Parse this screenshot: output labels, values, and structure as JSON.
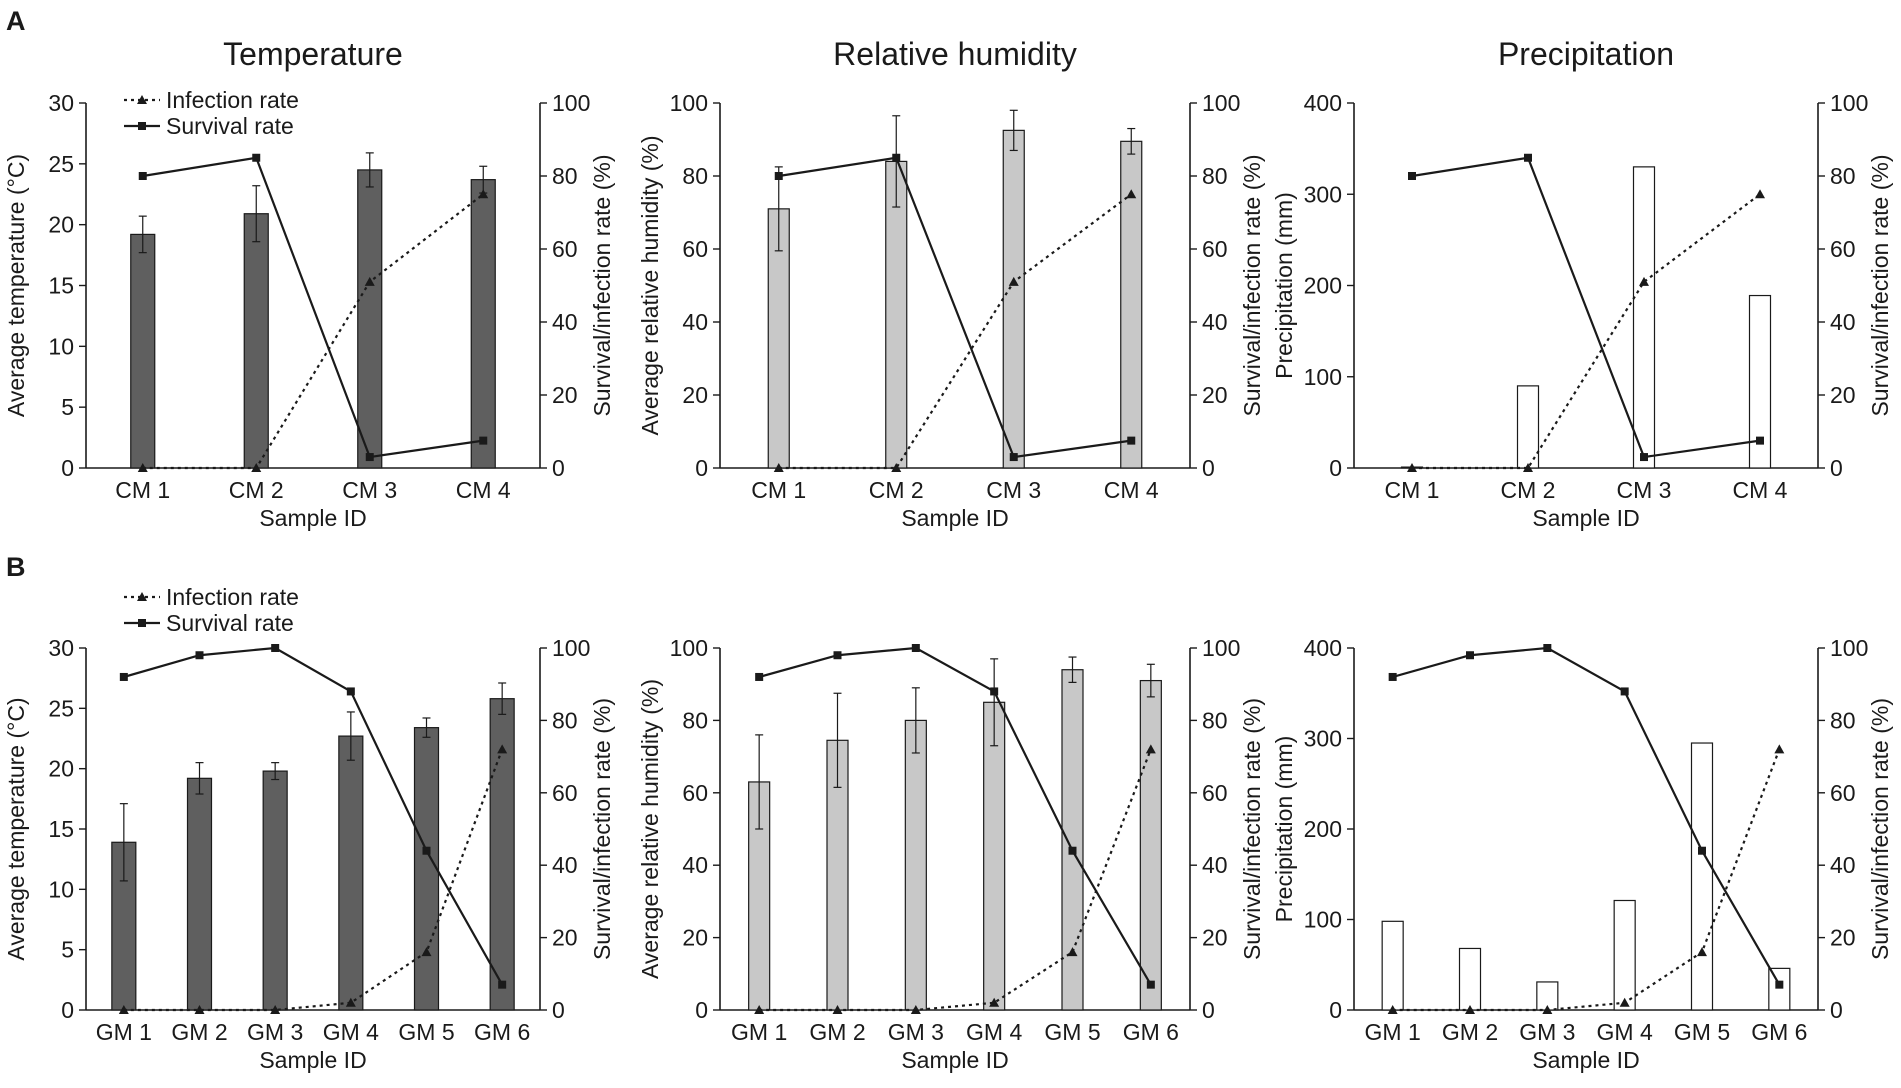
{
  "panel_labels": [
    "A",
    "B"
  ],
  "legend": {
    "infection": "Infection rate",
    "survival": "Survival rate"
  },
  "colors": {
    "temperature": "#5f5f5f",
    "humidity": "#c8c8c8",
    "precipitation": "#ffffff",
    "ink": "#1a1a1a"
  },
  "chart_data": [
    {
      "type": "bar",
      "panel": "A",
      "title": "Temperature",
      "categories": [
        "CM 1",
        "CM 2",
        "CM 3",
        "CM 4"
      ],
      "values": [
        19.2,
        20.9,
        24.5,
        23.7
      ],
      "errors": [
        1.5,
        2.3,
        1.4,
        1.1
      ],
      "xlabel": "Sample ID",
      "ylabel": "Average temperature (°C)",
      "ylim": [
        0,
        30
      ],
      "yticks": [
        0,
        5,
        10,
        15,
        20,
        25,
        30
      ],
      "y2label": "Survival/infection rate (%)",
      "y2lim": [
        0,
        100
      ],
      "y2ticks": [
        0,
        20,
        40,
        60,
        80,
        100
      ],
      "series": [
        {
          "name": "Infection rate",
          "values": [
            0,
            0,
            51,
            75
          ]
        },
        {
          "name": "Survival rate",
          "values": [
            80,
            85,
            3,
            7.5
          ]
        }
      ]
    },
    {
      "type": "bar",
      "panel": "A",
      "title": "Relative humidity",
      "categories": [
        "CM 1",
        "CM 2",
        "CM 3",
        "CM 4"
      ],
      "values": [
        71,
        84,
        92.5,
        89.5
      ],
      "errors": [
        11.5,
        12.5,
        5.5,
        3.5
      ],
      "xlabel": "Sample ID",
      "ylabel": "Average relative humidity (%)",
      "ylim": [
        0,
        100
      ],
      "yticks": [
        0,
        20,
        40,
        60,
        80,
        100
      ],
      "y2label": "Survival/infection rate (%)",
      "y2lim": [
        0,
        100
      ],
      "y2ticks": [
        0,
        20,
        40,
        60,
        80,
        100
      ],
      "series": [
        {
          "name": "Infection rate",
          "values": [
            0,
            0,
            51,
            75
          ]
        },
        {
          "name": "Survival rate",
          "values": [
            80,
            85,
            3,
            7.5
          ]
        }
      ]
    },
    {
      "type": "bar",
      "panel": "A",
      "title": "Precipitation",
      "categories": [
        "CM 1",
        "CM 2",
        "CM 3",
        "CM 4"
      ],
      "values": [
        1,
        90,
        330,
        189
      ],
      "errors": [
        0,
        0,
        0,
        0
      ],
      "xlabel": "Sample ID",
      "ylabel": "Precipitation (mm)",
      "ylim": [
        0,
        400
      ],
      "yticks": [
        0,
        100,
        200,
        300,
        400
      ],
      "y2label": "Survival/infection rate (%)",
      "y2lim": [
        0,
        100
      ],
      "y2ticks": [
        0,
        20,
        40,
        60,
        80,
        100
      ],
      "series": [
        {
          "name": "Infection rate",
          "values": [
            0,
            0,
            51,
            75
          ]
        },
        {
          "name": "Survival rate",
          "values": [
            80,
            85,
            3,
            7.5
          ]
        }
      ]
    },
    {
      "type": "bar",
      "panel": "B",
      "title": "",
      "categories": [
        "GM 1",
        "GM 2",
        "GM 3",
        "GM 4",
        "GM 5",
        "GM 6"
      ],
      "values": [
        13.9,
        19.2,
        19.8,
        22.7,
        23.4,
        25.8
      ],
      "errors": [
        3.2,
        1.3,
        0.7,
        2.0,
        0.8,
        1.3
      ],
      "xlabel": "Sample ID",
      "ylabel": "Average temperature (°C)",
      "ylim": [
        0,
        30
      ],
      "yticks": [
        0,
        5,
        10,
        15,
        20,
        25,
        30
      ],
      "y2label": "Survival/infection rate (%)",
      "y2lim": [
        0,
        100
      ],
      "y2ticks": [
        0,
        20,
        40,
        60,
        80,
        100
      ],
      "series": [
        {
          "name": "Infection rate",
          "values": [
            0,
            0,
            0,
            2,
            16,
            72
          ]
        },
        {
          "name": "Survival rate",
          "values": [
            92,
            98,
            100,
            88,
            44,
            7
          ]
        }
      ]
    },
    {
      "type": "bar",
      "panel": "B",
      "title": "",
      "categories": [
        "GM 1",
        "GM 2",
        "GM 3",
        "GM 4",
        "GM 5",
        "GM 6"
      ],
      "values": [
        63,
        74.5,
        80,
        85,
        94,
        91
      ],
      "errors": [
        13,
        13,
        9,
        12,
        3.5,
        4.5
      ],
      "xlabel": "Sample ID",
      "ylabel": "Average relative humidity (%)",
      "ylim": [
        0,
        100
      ],
      "yticks": [
        0,
        20,
        40,
        60,
        80,
        100
      ],
      "y2label": "Survival/infection rate (%)",
      "y2lim": [
        0,
        100
      ],
      "y2ticks": [
        0,
        20,
        40,
        60,
        80,
        100
      ],
      "series": [
        {
          "name": "Infection rate",
          "values": [
            0,
            0,
            0,
            2,
            16,
            72
          ]
        },
        {
          "name": "Survival rate",
          "values": [
            92,
            98,
            100,
            88,
            44,
            7
          ]
        }
      ]
    },
    {
      "type": "bar",
      "panel": "B",
      "title": "",
      "categories": [
        "GM 1",
        "GM 2",
        "GM 3",
        "GM 4",
        "GM 5",
        "GM 6"
      ],
      "values": [
        98,
        68,
        31,
        121,
        295,
        46
      ],
      "errors": [
        0,
        0,
        0,
        0,
        0,
        0
      ],
      "xlabel": "Sample ID",
      "ylabel": "Precipitation (mm)",
      "ylim": [
        0,
        400
      ],
      "yticks": [
        0,
        100,
        200,
        300,
        400
      ],
      "y2label": "Survival/infection rate (%)",
      "y2lim": [
        0,
        100
      ],
      "y2ticks": [
        0,
        20,
        40,
        60,
        80,
        100
      ],
      "series": [
        {
          "name": "Infection rate",
          "values": [
            0,
            0,
            0,
            2,
            16,
            72
          ]
        },
        {
          "name": "Survival rate",
          "values": [
            92,
            98,
            100,
            88,
            44,
            7
          ]
        }
      ]
    }
  ]
}
